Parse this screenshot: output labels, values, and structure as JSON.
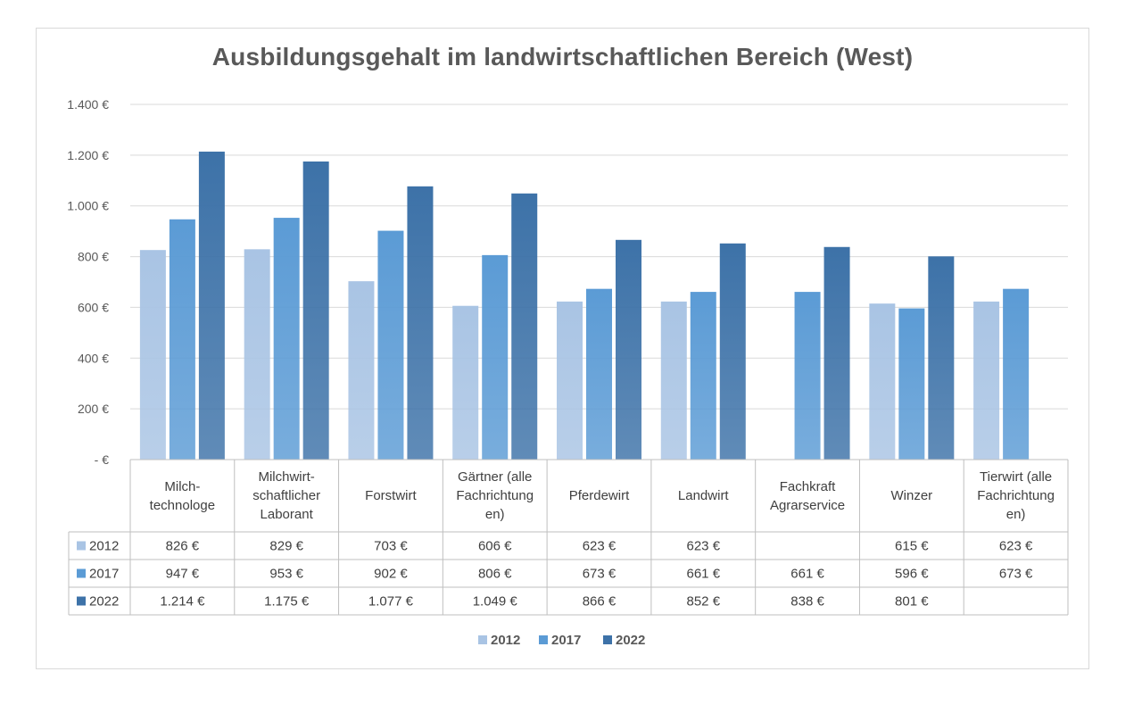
{
  "chart_data": {
    "type": "bar",
    "title": "Ausbildungsgehalt im landwirtschaftlichen Bereich (West)",
    "categories": [
      "Milch-\ntechnologe",
      "Milchwirt-\nschaftlicher\nLaborant",
      "Forstwirt",
      "Gärtner (alle\nFachrichtung\nen)",
      "Pferdewirt",
      "Landwirt",
      "Fachkraft\nAgrarservice",
      "Winzer",
      "Tierwirt (alle\nFachrichtung\nen)"
    ],
    "series": [
      {
        "name": "2012",
        "color": "#a9c4e4",
        "values": [
          826,
          829,
          703,
          606,
          623,
          623,
          null,
          615,
          623
        ],
        "labels": [
          "826 €",
          "829 €",
          "703 €",
          "606 €",
          "623 €",
          "623 €",
          "",
          "615 €",
          "623 €"
        ]
      },
      {
        "name": "2017",
        "color": "#5b9bd5",
        "values": [
          947,
          953,
          902,
          806,
          673,
          661,
          661,
          596,
          673
        ],
        "labels": [
          "947 €",
          "953 €",
          "902 €",
          "806 €",
          "673 €",
          "661 €",
          "661 €",
          "596 €",
          "673 €"
        ]
      },
      {
        "name": "2022",
        "color": "#3d72a8",
        "values": [
          1214,
          1175,
          1077,
          1049,
          866,
          852,
          838,
          801,
          null
        ],
        "labels": [
          "1.214 €",
          "1.175 €",
          "1.077 €",
          "1.049 €",
          "866 €",
          "852 €",
          "838 €",
          "801 €",
          ""
        ]
      }
    ],
    "y_ticks": [
      {
        "value": 0,
        "label": "-  €"
      },
      {
        "value": 200,
        "label": "200 €"
      },
      {
        "value": 400,
        "label": "400 €"
      },
      {
        "value": 600,
        "label": "600 €"
      },
      {
        "value": 800,
        "label": "800 €"
      },
      {
        "value": 1000,
        "label": "1.000 €"
      },
      {
        "value": 1200,
        "label": "1.200 €"
      },
      {
        "value": 1400,
        "label": "1.400 €"
      }
    ],
    "ylim": [
      0,
      1400
    ],
    "grid": true,
    "legend_position": "bottom",
    "data_table": true
  }
}
